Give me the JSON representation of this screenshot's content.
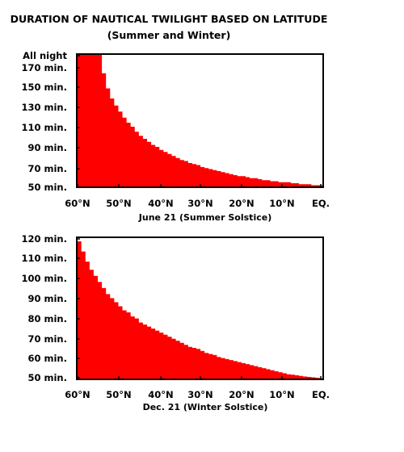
{
  "title": "DURATION OF NAUTICAL TWILIGHT BASED ON LATITUDE",
  "subtitle": "(Summer and Winter)",
  "colors": {
    "bar": "#ff0000",
    "frame": "#000000"
  },
  "chart_data": [
    {
      "type": "bar",
      "xlabel": "June 21 (Summer Solstice)",
      "ylabel": "",
      "x_tick_labels": [
        "60°N",
        "50°N",
        "40°N",
        "30°N",
        "20°N",
        "10°N",
        "EQ."
      ],
      "y_tick_labels": [
        "All night",
        "170 min.",
        "150 min.",
        "130 min.",
        "110 min.",
        "90 min.",
        "70 min.",
        "50 min."
      ],
      "y_tick_values": [
        182,
        170,
        150,
        130,
        110,
        90,
        70,
        50
      ],
      "ylim": [
        50,
        182
      ],
      "x_range": [
        60,
        0
      ],
      "latitude_step": 1,
      "values": [
        182,
        182,
        182,
        182,
        182,
        182,
        163,
        148,
        138,
        131,
        125,
        119,
        114,
        110,
        105,
        101,
        98,
        95,
        92,
        90,
        87,
        85,
        83,
        81,
        79,
        77,
        76,
        74,
        73,
        72,
        70,
        69,
        68,
        67,
        66,
        65,
        64,
        63,
        62,
        61,
        61,
        60,
        59,
        59,
        58,
        57,
        57,
        56,
        56,
        55,
        55,
        55,
        54,
        54,
        53,
        53,
        53,
        52,
        52,
        52
      ]
    },
    {
      "type": "bar",
      "xlabel": "Dec. 21 (Winter Solstice)",
      "ylabel": "",
      "x_tick_labels": [
        "60°N",
        "50°N",
        "40°N",
        "30°N",
        "20°N",
        "10°N",
        "EQ."
      ],
      "y_tick_labels": [
        "120 min.",
        "110 min.",
        "100 min.",
        "90 min.",
        "80 min.",
        "70 min.",
        "60 min.",
        "50 min."
      ],
      "y_tick_values": [
        120,
        110,
        100,
        90,
        80,
        70,
        60,
        50
      ],
      "ylim": [
        50,
        120
      ],
      "x_range": [
        60,
        0
      ],
      "latitude_step": 1,
      "values": [
        118,
        113,
        108,
        104,
        101,
        98,
        95,
        92,
        90,
        88,
        86,
        84,
        83,
        81,
        80,
        78,
        77,
        76,
        75,
        74,
        73,
        72,
        71,
        70,
        69,
        68,
        67,
        66,
        65.5,
        65,
        64,
        63,
        62.5,
        62,
        61,
        60.5,
        60,
        59.5,
        59,
        58.5,
        58,
        57.5,
        57,
        56.5,
        56,
        55.5,
        55,
        54.5,
        54,
        53.5,
        53,
        52.5,
        52.3,
        52,
        51.7,
        51.4,
        51.2,
        51,
        50.8,
        50.5
      ]
    }
  ]
}
